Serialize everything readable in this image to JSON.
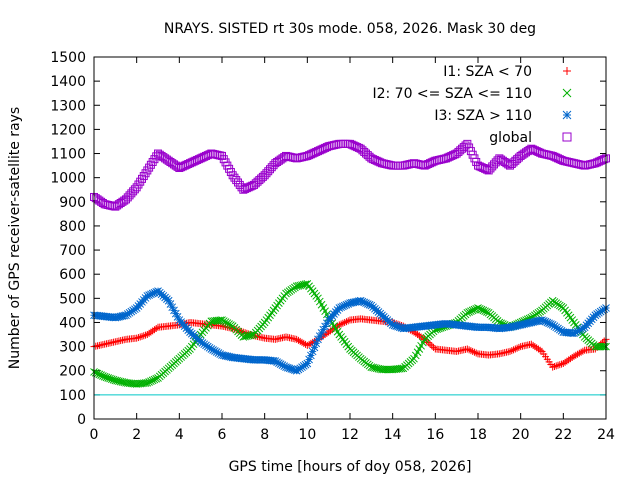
{
  "chart_data": {
    "type": "scatter",
    "title": "NRAYS. SISTED rt 30s mode. 058, 2026. Mask 30 deg",
    "xlabel": "GPS time [hours of doy 058, 2026]",
    "ylabel": "Number of GPS receiver-satellite rays",
    "xlim": [
      0,
      24
    ],
    "ylim": [
      0,
      1500
    ],
    "xticks": [
      0,
      2,
      4,
      6,
      8,
      10,
      12,
      14,
      16,
      18,
      20,
      22,
      24
    ],
    "yticks": [
      0,
      100,
      200,
      300,
      400,
      500,
      600,
      700,
      800,
      900,
      1000,
      1100,
      1200,
      1300,
      1400,
      1500
    ],
    "grid": false,
    "legend_position": "top-right",
    "threshold_line": {
      "y": 100,
      "color": "#00c8c8"
    },
    "series": [
      {
        "name": "I1: SZA < 70",
        "marker": "plus",
        "color": "#ff0000",
        "x": [
          0,
          0.5,
          1,
          1.5,
          2,
          2.5,
          3,
          3.5,
          4,
          4.5,
          5,
          5.5,
          6,
          6.5,
          7,
          7.5,
          8,
          8.5,
          9,
          9.5,
          10,
          10.5,
          11,
          11.5,
          12,
          12.5,
          13,
          13.5,
          14,
          14.5,
          15,
          15.5,
          16,
          16.5,
          17,
          17.5,
          18,
          18.5,
          19,
          19.5,
          20,
          20.5,
          21,
          21.5,
          22,
          22.5,
          23,
          23.5,
          24
        ],
        "y": [
          300,
          310,
          320,
          330,
          335,
          350,
          380,
          385,
          390,
          400,
          395,
          390,
          385,
          375,
          360,
          345,
          335,
          330,
          340,
          330,
          305,
          330,
          360,
          390,
          410,
          415,
          410,
          405,
          400,
          385,
          360,
          330,
          290,
          285,
          280,
          290,
          270,
          265,
          270,
          280,
          300,
          310,
          280,
          215,
          230,
          260,
          285,
          290,
          330
        ]
      },
      {
        "name": "I2: 70 <= SZA <= 110",
        "marker": "cross",
        "color": "#00b000",
        "x": [
          0,
          0.5,
          1,
          1.5,
          2,
          2.5,
          3,
          3.5,
          4,
          4.5,
          5,
          5.5,
          6,
          6.5,
          7,
          7.5,
          8,
          8.5,
          9,
          9.5,
          10,
          10.5,
          11,
          11.5,
          12,
          12.5,
          13,
          13.5,
          14,
          14.5,
          15,
          15.5,
          16,
          16.5,
          17,
          17.5,
          18,
          18.5,
          19,
          19.5,
          20,
          20.5,
          21,
          21.5,
          22,
          22.5,
          23,
          23.5,
          24
        ],
        "y": [
          195,
          175,
          160,
          150,
          145,
          150,
          170,
          210,
          250,
          290,
          350,
          405,
          410,
          385,
          340,
          350,
          400,
          460,
          520,
          550,
          560,
          500,
          420,
          350,
          290,
          250,
          215,
          205,
          205,
          210,
          250,
          330,
          370,
          385,
          400,
          440,
          460,
          440,
          400,
          380,
          400,
          420,
          450,
          490,
          460,
          400,
          340,
          300,
          300
        ]
      },
      {
        "name": "I3: SZA > 110",
        "marker": "star",
        "color": "#0066cc",
        "x": [
          0,
          0.5,
          1,
          1.5,
          2,
          2.5,
          3,
          3.5,
          4,
          4.5,
          5,
          5.5,
          6,
          6.5,
          7,
          7.5,
          8,
          8.5,
          9,
          9.5,
          10,
          10.5,
          11,
          11.5,
          12,
          12.5,
          13,
          13.5,
          14,
          14.5,
          15,
          15.5,
          16,
          16.5,
          17,
          17.5,
          18,
          18.5,
          19,
          19.5,
          20,
          20.5,
          21,
          21.5,
          22,
          22.5,
          23,
          23.5,
          24
        ],
        "y": [
          430,
          425,
          420,
          430,
          460,
          510,
          530,
          490,
          410,
          360,
          320,
          290,
          265,
          255,
          250,
          245,
          245,
          240,
          215,
          200,
          230,
          330,
          410,
          460,
          480,
          490,
          470,
          430,
          390,
          375,
          380,
          385,
          390,
          395,
          390,
          385,
          380,
          380,
          375,
          380,
          390,
          400,
          410,
          390,
          360,
          355,
          380,
          430,
          460
        ]
      },
      {
        "name": "global",
        "marker": "square",
        "color": "#9900cc",
        "x": [
          0,
          0.5,
          1,
          1.5,
          2,
          2.5,
          3,
          3.5,
          4,
          4.5,
          5,
          5.5,
          6,
          6.5,
          7,
          7.5,
          8,
          8.5,
          9,
          9.5,
          10,
          10.5,
          11,
          11.5,
          12,
          12.5,
          13,
          13.5,
          14,
          14.5,
          15,
          15.5,
          16,
          16.5,
          17,
          17.5,
          18,
          18.5,
          19,
          19.5,
          20,
          20.5,
          21,
          21.5,
          22,
          22.5,
          23,
          23.5,
          24
        ],
        "y": [
          920,
          890,
          880,
          910,
          960,
          1030,
          1100,
          1070,
          1040,
          1060,
          1080,
          1100,
          1090,
          1010,
          950,
          970,
          1010,
          1060,
          1090,
          1080,
          1090,
          1110,
          1130,
          1140,
          1140,
          1120,
          1080,
          1060,
          1050,
          1050,
          1060,
          1050,
          1070,
          1080,
          1100,
          1140,
          1050,
          1030,
          1080,
          1050,
          1090,
          1120,
          1100,
          1090,
          1070,
          1060,
          1050,
          1060,
          1080
        ]
      }
    ]
  }
}
